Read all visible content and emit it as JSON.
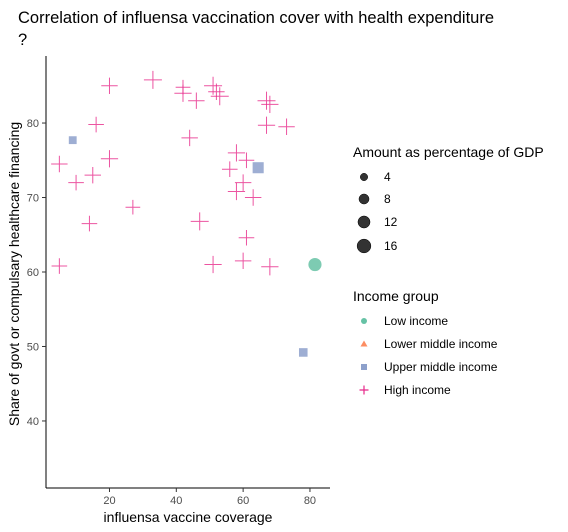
{
  "chart_data": {
    "type": "scatter",
    "title": "Correlation of influensa vaccination cover with health expenditure\n?",
    "xlabel": "influensa vaccine coverage",
    "ylabel": "Share of govt or compulsary healthcare financing",
    "xlim": [
      1,
      86
    ],
    "ylim": [
      31,
      89
    ],
    "xticks": [
      20,
      40,
      60,
      80
    ],
    "yticks": [
      40,
      50,
      60,
      70,
      80
    ],
    "grid": false,
    "legend_position": "right",
    "size_legend": {
      "title": "Amount as percentage of GDP",
      "entries": [
        {
          "label": "4",
          "value": 4
        },
        {
          "label": "8",
          "value": 8
        },
        {
          "label": "12",
          "value": 12
        },
        {
          "label": "16",
          "value": 16
        }
      ]
    },
    "group_legend": {
      "title": "Income group",
      "entries": [
        {
          "label": "Low income",
          "shape": "circle",
          "color": "#66c2a5"
        },
        {
          "label": "Lower middle income",
          "shape": "triangle",
          "color": "#fc8d62"
        },
        {
          "label": "Upper middle income",
          "shape": "square",
          "color": "#8da0cb"
        },
        {
          "label": "High income",
          "shape": "plus",
          "color": "#e7298a"
        }
      ]
    },
    "series": [
      {
        "name": "Low income",
        "points": [
          {
            "x": 81.5,
            "y": 61,
            "size": 12
          }
        ]
      },
      {
        "name": "Lower middle income",
        "points": []
      },
      {
        "name": "Upper middle income",
        "points": [
          {
            "x": 9,
            "y": 77.7,
            "size": 5
          },
          {
            "x": 64.5,
            "y": 74,
            "size": 10
          },
          {
            "x": 78,
            "y": 49.2,
            "size": 6
          }
        ]
      },
      {
        "name": "High income",
        "points": [
          {
            "x": 5,
            "y": 74.5,
            "size": 10
          },
          {
            "x": 5,
            "y": 60.8,
            "size": 9
          },
          {
            "x": 10,
            "y": 72,
            "size": 9
          },
          {
            "x": 14,
            "y": 66.5,
            "size": 9
          },
          {
            "x": 15,
            "y": 73,
            "size": 10
          },
          {
            "x": 16,
            "y": 79.8,
            "size": 9
          },
          {
            "x": 20,
            "y": 75.2,
            "size": 11
          },
          {
            "x": 20,
            "y": 85,
            "size": 10
          },
          {
            "x": 27,
            "y": 68.7,
            "size": 8
          },
          {
            "x": 33,
            "y": 85.8,
            "size": 12
          },
          {
            "x": 42,
            "y": 84.8,
            "size": 8
          },
          {
            "x": 42,
            "y": 84,
            "size": 11
          },
          {
            "x": 44,
            "y": 78,
            "size": 10
          },
          {
            "x": 46,
            "y": 83,
            "size": 10
          },
          {
            "x": 47,
            "y": 66.8,
            "size": 12
          },
          {
            "x": 51,
            "y": 85,
            "size": 12
          },
          {
            "x": 52,
            "y": 84.2,
            "size": 10
          },
          {
            "x": 53,
            "y": 83.6,
            "size": 12
          },
          {
            "x": 51,
            "y": 61,
            "size": 11
          },
          {
            "x": 56,
            "y": 73.8,
            "size": 9
          },
          {
            "x": 58,
            "y": 76,
            "size": 11
          },
          {
            "x": 58,
            "y": 70.8,
            "size": 11
          },
          {
            "x": 60,
            "y": 72,
            "size": 10
          },
          {
            "x": 61,
            "y": 75,
            "size": 9
          },
          {
            "x": 61,
            "y": 64.6,
            "size": 9
          },
          {
            "x": 60,
            "y": 61.5,
            "size": 10
          },
          {
            "x": 63,
            "y": 70,
            "size": 10
          },
          {
            "x": 67,
            "y": 83,
            "size": 12
          },
          {
            "x": 68,
            "y": 82.5,
            "size": 11
          },
          {
            "x": 67,
            "y": 79.7,
            "size": 11
          },
          {
            "x": 68,
            "y": 60.7,
            "size": 11
          },
          {
            "x": 73,
            "y": 79.5,
            "size": 10
          }
        ]
      }
    ]
  }
}
